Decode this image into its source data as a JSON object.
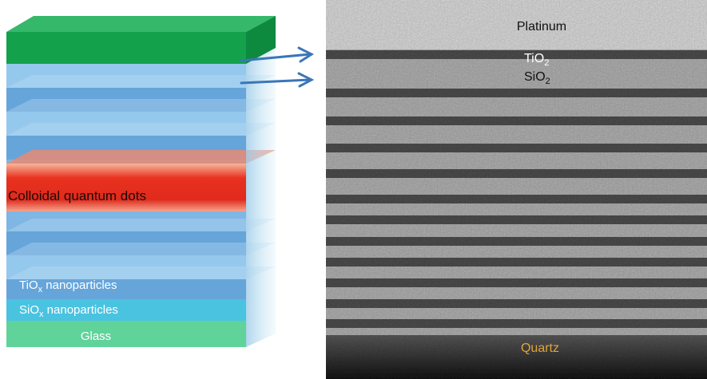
{
  "left_diagram": {
    "quantum_dots_label": "Colloidal quantum dots",
    "tio_label": {
      "base": "TiO",
      "sub": "x",
      "rest": " nanoparticles"
    },
    "sio_label": {
      "base": "SiO",
      "sub": "x",
      "rest": " nanoparticles"
    },
    "glass_label": "Glass"
  },
  "micrograph": {
    "top_label": "Platinum",
    "tio2_label": {
      "base": "TiO",
      "sub": "2"
    },
    "sio2_label": {
      "base": "SiO",
      "sub": "2"
    },
    "bottom_label": "Quartz"
  }
}
